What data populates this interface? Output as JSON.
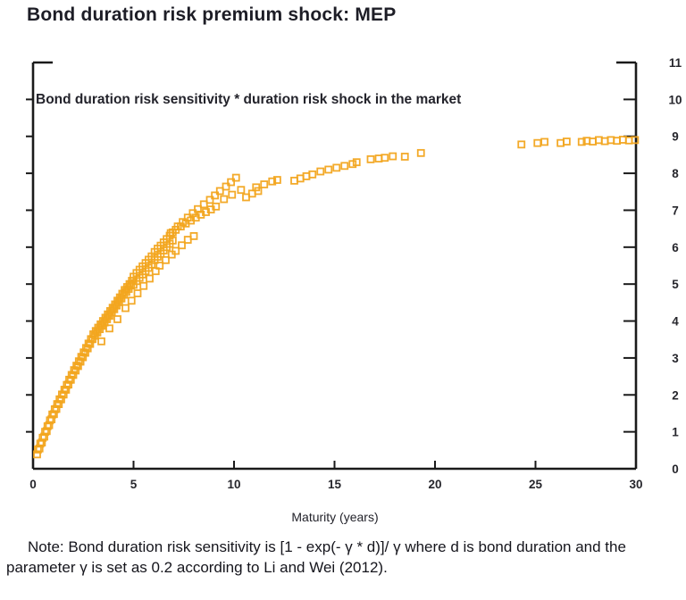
{
  "page": {
    "title": "Bond duration risk premium shock: MEP"
  },
  "chart": {
    "annotation": "Bond duration risk sensitivity * duration risk shock in the market",
    "x_axis_label": "Maturity (years)",
    "note": "Note: Bond duration risk sensitivity is [1 - exp(- γ * d)]/ γ  where d is bond duration and the parameter γ is set as 0.2 according to Li and Wei (2012)."
  },
  "colors": {
    "marker": "#F2A51F",
    "axis": "#1a1a1a",
    "tick_text": "#26262c"
  },
  "chart_data": {
    "type": "scatter",
    "title": "Bond duration risk premium shock: MEP",
    "annotation": "Bond duration risk sensitivity * duration risk shock in the market",
    "xlabel": "Maturity (years)",
    "ylabel": "",
    "xlim": [
      0,
      30
    ],
    "ylim": [
      0,
      11
    ],
    "xticks": [
      0,
      5,
      10,
      15,
      20,
      25,
      30
    ],
    "yticks": [
      0,
      1,
      2,
      3,
      4,
      5,
      6,
      7,
      8,
      9,
      10,
      11
    ],
    "y_axis_side": "right",
    "grid": false,
    "legend": null,
    "marker": "open-square",
    "marker_size": 7,
    "series": [
      {
        "name": "Bond duration risk sensitivity * duration risk shock in the market",
        "points": [
          [
            0.2,
            0.39
          ],
          [
            0.24,
            0.52
          ],
          [
            0.32,
            0.55
          ],
          [
            0.36,
            0.68
          ],
          [
            0.44,
            0.71
          ],
          [
            0.48,
            0.84
          ],
          [
            0.56,
            0.87
          ],
          [
            0.6,
            1.0
          ],
          [
            0.68,
            1.02
          ],
          [
            0.72,
            1.15
          ],
          [
            0.8,
            1.18
          ],
          [
            0.84,
            1.31
          ],
          [
            0.92,
            1.34
          ],
          [
            0.96,
            1.47
          ],
          [
            1.04,
            1.48
          ],
          [
            1.08,
            1.61
          ],
          [
            1.16,
            1.62
          ],
          [
            1.2,
            1.75
          ],
          [
            1.28,
            1.75
          ],
          [
            1.32,
            1.88
          ],
          [
            1.4,
            1.88
          ],
          [
            1.44,
            2.01
          ],
          [
            1.52,
            2.01
          ],
          [
            1.56,
            2.14
          ],
          [
            1.64,
            2.14
          ],
          [
            1.68,
            2.27
          ],
          [
            1.76,
            2.28
          ],
          [
            1.8,
            2.41
          ],
          [
            1.88,
            2.41
          ],
          [
            1.92,
            2.54
          ],
          [
            2.0,
            2.54
          ],
          [
            2.04,
            2.67
          ],
          [
            2.12,
            2.66
          ],
          [
            2.16,
            2.79
          ],
          [
            2.24,
            2.78
          ],
          [
            2.28,
            2.91
          ],
          [
            2.36,
            2.9
          ],
          [
            2.4,
            3.03
          ],
          [
            2.48,
            3.02
          ],
          [
            2.52,
            3.15
          ],
          [
            2.6,
            3.14
          ],
          [
            2.64,
            3.27
          ],
          [
            2.72,
            3.26
          ],
          [
            2.76,
            3.39
          ],
          [
            2.84,
            3.38
          ],
          [
            2.88,
            3.51
          ],
          [
            2.96,
            3.51
          ],
          [
            3.0,
            3.64
          ],
          [
            3.08,
            3.6
          ],
          [
            3.12,
            3.73
          ],
          [
            3.2,
            3.69
          ],
          [
            3.24,
            3.82
          ],
          [
            3.32,
            3.78
          ],
          [
            3.36,
            3.91
          ],
          [
            3.44,
            3.87
          ],
          [
            3.48,
            4.0
          ],
          [
            3.56,
            3.96
          ],
          [
            3.6,
            4.09
          ],
          [
            3.68,
            4.05
          ],
          [
            3.72,
            4.18
          ],
          [
            3.8,
            4.14
          ],
          [
            3.84,
            4.27
          ],
          [
            3.92,
            4.23
          ],
          [
            3.96,
            4.36
          ],
          [
            4.04,
            4.32
          ],
          [
            4.08,
            4.45
          ],
          [
            4.16,
            4.42
          ],
          [
            4.2,
            4.55
          ],
          [
            4.28,
            4.51
          ],
          [
            4.32,
            4.64
          ],
          [
            4.4,
            4.61
          ],
          [
            4.44,
            4.74
          ],
          [
            4.52,
            4.71
          ],
          [
            4.56,
            4.84
          ],
          [
            4.64,
            4.79
          ],
          [
            4.68,
            4.92
          ],
          [
            4.76,
            4.87
          ],
          [
            4.8,
            5.0
          ],
          [
            4.88,
            4.96
          ],
          [
            4.92,
            5.09
          ],
          [
            5.0,
            5.2
          ],
          [
            5.0,
            4.98
          ],
          [
            5.15,
            5.3
          ],
          [
            5.15,
            5.08
          ],
          [
            5.3,
            5.39
          ],
          [
            5.3,
            5.17
          ],
          [
            5.45,
            5.48
          ],
          [
            5.45,
            5.26
          ],
          [
            5.6,
            5.57
          ],
          [
            5.6,
            5.35
          ],
          [
            5.75,
            5.66
          ],
          [
            5.75,
            5.44
          ],
          [
            5.9,
            5.75
          ],
          [
            5.9,
            5.53
          ],
          [
            6.05,
            5.87
          ],
          [
            6.05,
            5.65
          ],
          [
            6.2,
            5.96
          ],
          [
            6.2,
            5.74
          ],
          [
            6.35,
            6.04
          ],
          [
            6.35,
            5.82
          ],
          [
            6.5,
            6.13
          ],
          [
            6.5,
            5.91
          ],
          [
            6.65,
            6.22
          ],
          [
            6.65,
            6.0
          ],
          [
            6.8,
            6.31
          ],
          [
            6.8,
            6.09
          ],
          [
            6.95,
            6.4
          ],
          [
            6.95,
            6.18
          ],
          [
            3.4,
            3.45
          ],
          [
            3.8,
            3.8
          ],
          [
            4.2,
            4.05
          ],
          [
            4.6,
            4.35
          ],
          [
            4.9,
            4.55
          ],
          [
            5.2,
            4.75
          ],
          [
            5.5,
            4.95
          ],
          [
            5.8,
            5.15
          ],
          [
            6.1,
            5.35
          ],
          [
            6.3,
            5.5
          ],
          [
            6.6,
            5.65
          ],
          [
            6.9,
            5.8
          ],
          [
            7.1,
            5.9
          ],
          [
            7.4,
            6.05
          ],
          [
            7.7,
            6.2
          ],
          [
            8.0,
            6.3
          ],
          [
            7.2,
            6.56
          ],
          [
            7.45,
            6.68
          ],
          [
            7.7,
            6.8
          ],
          [
            7.95,
            6.92
          ],
          [
            8.2,
            7.03
          ],
          [
            8.5,
            7.16
          ],
          [
            8.8,
            7.28
          ],
          [
            9.05,
            7.4
          ],
          [
            9.3,
            7.52
          ],
          [
            9.6,
            7.64
          ],
          [
            9.85,
            7.76
          ],
          [
            6.85,
            6.38
          ],
          [
            7.1,
            6.47
          ],
          [
            7.35,
            6.56
          ],
          [
            7.6,
            6.64
          ],
          [
            7.85,
            6.72
          ],
          [
            8.1,
            6.8
          ],
          [
            8.35,
            6.88
          ],
          [
            8.6,
            6.95
          ],
          [
            8.85,
            7.02
          ],
          [
            9.1,
            7.1
          ],
          [
            9.5,
            7.3
          ],
          [
            9.9,
            7.42
          ],
          [
            10.1,
            7.88
          ],
          [
            10.35,
            7.55
          ],
          [
            10.6,
            7.35
          ],
          [
            10.9,
            7.45
          ],
          [
            11.2,
            7.52
          ],
          [
            11.1,
            7.62
          ],
          [
            11.5,
            7.7
          ],
          [
            11.9,
            7.78
          ],
          [
            12.15,
            7.82
          ],
          [
            13.0,
            7.8
          ],
          [
            13.3,
            7.86
          ],
          [
            13.6,
            7.92
          ],
          [
            13.9,
            7.97
          ],
          [
            14.3,
            8.05
          ],
          [
            14.7,
            8.1
          ],
          [
            15.1,
            8.15
          ],
          [
            15.5,
            8.2
          ],
          [
            15.9,
            8.25
          ],
          [
            16.1,
            8.3
          ],
          [
            16.8,
            8.38
          ],
          [
            17.2,
            8.4
          ],
          [
            17.5,
            8.42
          ],
          [
            17.9,
            8.46
          ],
          [
            18.5,
            8.45
          ],
          [
            19.3,
            8.55
          ],
          [
            24.3,
            8.78
          ],
          [
            25.1,
            8.82
          ],
          [
            25.45,
            8.85
          ],
          [
            26.25,
            8.82
          ],
          [
            26.55,
            8.86
          ],
          [
            27.3,
            8.85
          ],
          [
            27.55,
            8.88
          ],
          [
            27.85,
            8.86
          ],
          [
            28.15,
            8.9
          ],
          [
            28.45,
            8.87
          ],
          [
            28.75,
            8.9
          ],
          [
            29.05,
            8.88
          ],
          [
            29.35,
            8.91
          ],
          [
            29.65,
            8.89
          ],
          [
            29.95,
            8.9
          ]
        ]
      }
    ]
  }
}
